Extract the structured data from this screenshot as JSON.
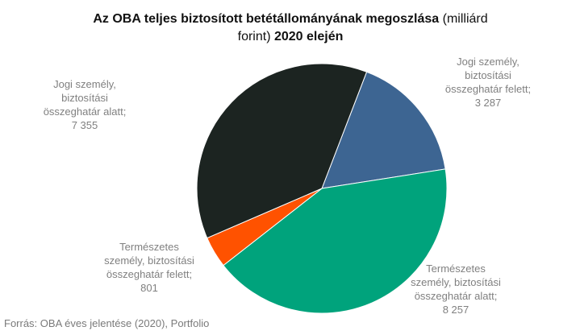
{
  "title": {
    "bold_part1": "Az OBA teljes biztosított betétállományának megoszlása",
    "normal_part": " (milliárd",
    "normal_part2": "forint)",
    "bold_part2": " 2020 elején"
  },
  "source": "Forrás: OBA éves jelentése (2020), Portfolio",
  "chart_data": {
    "type": "pie",
    "title": "Az OBA teljes biztosított betétállományának megoszlása (milliárd forint) 2020 elején",
    "slices": [
      {
        "label_lines": [
          "Jogi személy,",
          "biztosítási",
          "összeghatár felett;",
          "3 287"
        ],
        "value": 3287,
        "color": "#3d6592"
      },
      {
        "label_lines": [
          "Természetes",
          "személy, biztosítási",
          "összeghatár alatt;",
          "8 257"
        ],
        "value": 8257,
        "color": "#00a37c"
      },
      {
        "label_lines": [
          "Természetes",
          "személy, biztosítási",
          "összeghatár felett;",
          "801"
        ],
        "value": 801,
        "color": "#ff5200"
      },
      {
        "label_lines": [
          "Jogi személy,",
          "biztosítási",
          "összeghatár alatt;",
          "7 355"
        ],
        "value": 7355,
        "color": "#1c2421"
      }
    ]
  }
}
